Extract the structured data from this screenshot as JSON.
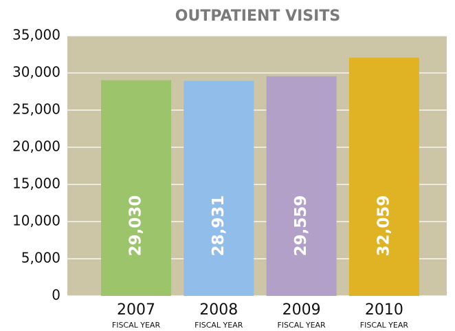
{
  "chart_data": {
    "type": "bar",
    "title": "OUTPATIENT VISITS",
    "categories": [
      "2007",
      "2008",
      "2009",
      "2010"
    ],
    "category_sublabel": "FISCAL YEAR",
    "values": [
      29030,
      28931,
      29559,
      32059
    ],
    "value_labels": [
      "29,030",
      "28,931",
      "29,559",
      "32,059"
    ],
    "colors": [
      "#9cc46a",
      "#90bde9",
      "#b3a0c9",
      "#e0b325"
    ],
    "ylim": [
      0,
      35000
    ],
    "yticks": [
      0,
      {
        "value": 5000,
        "label": "5,000"
      },
      {
        "value": 10000,
        "label": "10,000"
      },
      {
        "value": 15000,
        "label": "15,000"
      },
      {
        "value": 20000,
        "label": "20,000"
      },
      {
        "value": 25000,
        "label": "25,000"
      },
      {
        "value": 30000,
        "label": "30,000"
      },
      {
        "value": 35000,
        "label": "35,000"
      }
    ],
    "grid": true
  }
}
